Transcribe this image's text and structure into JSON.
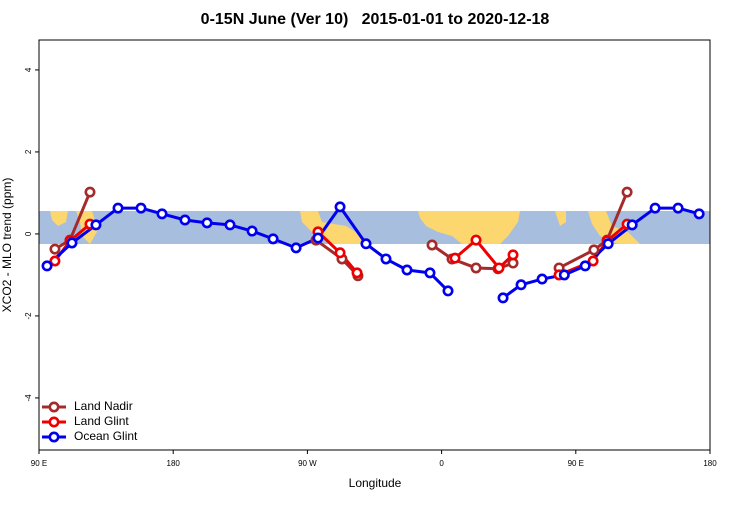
{
  "chart_data": {
    "type": "line",
    "title": "0-15N June (Ver 10)   2015-01-01 to 2020-12-18",
    "xlabel": "Longitude",
    "ylabel": "XCO2 - MLO trend (ppm)",
    "xlim": [
      90,
      540
    ],
    "xticks": [
      {
        "value": 90,
        "label": "90 E"
      },
      180,
      {
        "value": 270,
        "label": "90 W"
      },
      {
        "value": 360,
        "label": "0"
      },
      {
        "value": 450,
        "label": "90 E"
      },
      {
        "value": 540,
        "label": "180"
      }
    ],
    "ylim": [
      -5.27,
      4.73
    ],
    "yticks": [
      -4,
      -2,
      0,
      2,
      4
    ],
    "grid": false,
    "legend": "bottom-left",
    "series": [
      {
        "name": "Land Nadir",
        "color": "#a52a2a",
        "x": [
          100.7,
          110.8,
          124.2,
          null,
          275.8,
          293.2,
          303.9,
          null,
          353.6,
          367.0,
          383.1,
          397.8,
          407.9,
          null,
          438.8,
          462.2,
          471.0,
          484.4
        ],
        "values": [
          -0.37,
          -0.15,
          1.02,
          null,
          -0.15,
          -0.61,
          -1.02,
          null,
          -0.27,
          -0.61,
          -0.83,
          -0.85,
          -0.71,
          null,
          -0.83,
          -0.39,
          -0.15,
          1.02
        ]
      },
      {
        "name": "Land Glint",
        "color": "#ee0000",
        "x": [
          100.7,
          110.8,
          124.2,
          null,
          277.1,
          291.9,
          303.3,
          null,
          369.0,
          383.1,
          398.5,
          407.9,
          null,
          438.8,
          461.6,
          471.0,
          484.4
        ],
        "values": [
          -0.66,
          -0.17,
          0.24,
          null,
          0.05,
          -0.46,
          -0.95,
          null,
          -0.59,
          -0.15,
          -0.83,
          -0.51,
          null,
          -1.0,
          -0.66,
          -0.17,
          0.24
        ]
      },
      {
        "name": "Ocean Glint",
        "color": "#0000ee",
        "x": [
          95.4,
          112.1,
          128.2,
          143.0,
          158.4,
          172.5,
          187.9,
          202.7,
          218.1,
          232.9,
          247.0,
          262.4,
          277.1,
          291.9,
          309.3,
          322.7,
          336.8,
          352.2,
          364.3,
          null,
          401.2,
          413.3,
          427.4,
          442.3,
          456.3,
          471.7,
          487.8,
          503.2,
          518.6,
          532.7
        ],
        "values": [
          -0.78,
          -0.22,
          0.22,
          0.63,
          0.63,
          0.49,
          0.34,
          0.27,
          0.22,
          0.07,
          -0.12,
          -0.34,
          -0.1,
          0.66,
          -0.24,
          -0.61,
          -0.88,
          -0.95,
          -1.39,
          null,
          -1.56,
          -1.24,
          -1.1,
          -1.0,
          -0.78,
          -0.24,
          0.22,
          0.63,
          0.63,
          0.49
        ]
      }
    ]
  }
}
